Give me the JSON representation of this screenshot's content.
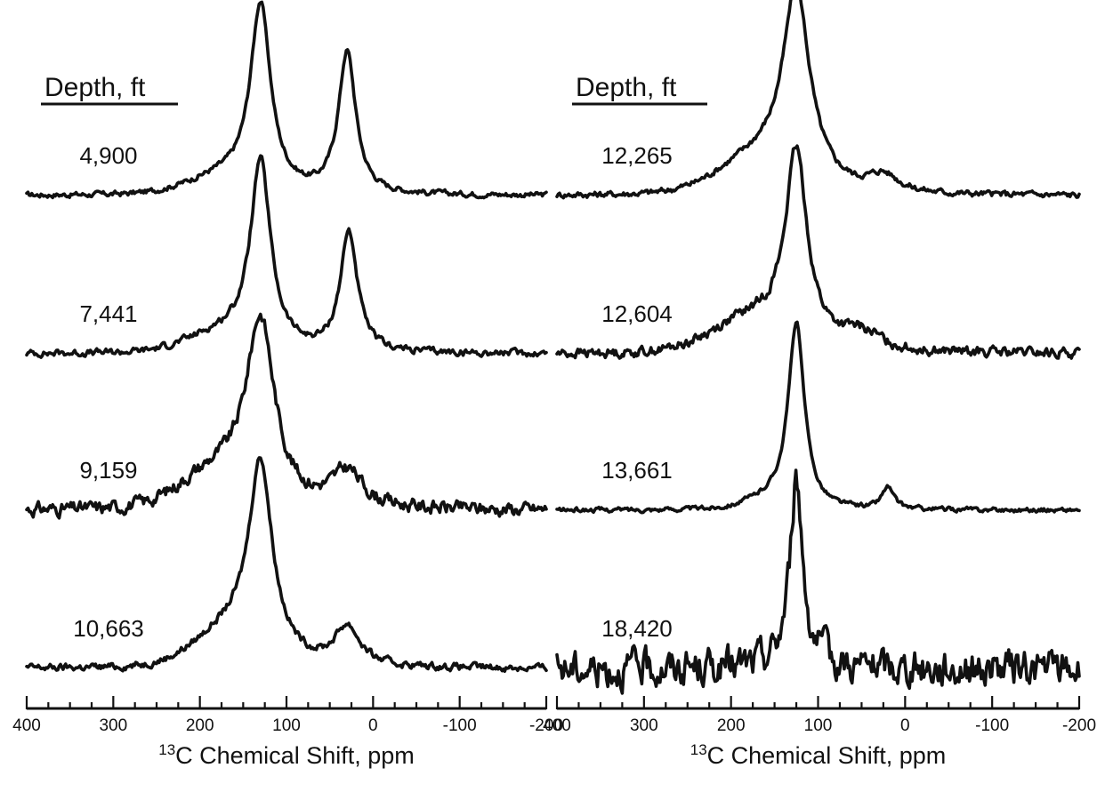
{
  "chart_data": [
    {
      "type": "line",
      "header": "Depth, ft",
      "xlabel_sup": "13",
      "xlabel": "C Chemical Shift, ppm",
      "xlim": [
        400,
        -200
      ],
      "x_ticks": [
        400,
        300,
        200,
        100,
        0,
        -100,
        -200
      ],
      "x_tick_labels": [
        "400",
        "300",
        "200",
        "100",
        "0",
        "-100",
        "-200"
      ],
      "series": [
        {
          "name": "4,900",
          "peaks": [
            {
              "ppm": 130,
              "height": 1.0,
              "width": 14
            },
            {
              "ppm": 30,
              "height": 0.78,
              "width": 12
            }
          ],
          "broad": {
            "ppm": 170,
            "height": 0.09,
            "width": 60
          },
          "noise": 0.012
        },
        {
          "name": "7,441",
          "peaks": [
            {
              "ppm": 130,
              "height": 1.0,
              "width": 14
            },
            {
              "ppm": 28,
              "height": 0.66,
              "width": 12
            }
          ],
          "broad": {
            "ppm": 170,
            "height": 0.1,
            "width": 60
          },
          "noise": 0.015
        },
        {
          "name": "9,159",
          "peaks": [
            {
              "ppm": 130,
              "height": 0.98,
              "width": 20
            },
            {
              "ppm": 30,
              "height": 0.2,
              "width": 22
            }
          ],
          "broad": {
            "ppm": 180,
            "height": 0.18,
            "width": 60
          },
          "noise": 0.03
        },
        {
          "name": "10,663",
          "peaks": [
            {
              "ppm": 130,
              "height": 1.0,
              "width": 16
            },
            {
              "ppm": 30,
              "height": 0.22,
              "width": 18
            }
          ],
          "broad": {
            "ppm": 160,
            "height": 0.2,
            "width": 60
          },
          "noise": 0.016
        }
      ]
    },
    {
      "type": "line",
      "header": "Depth, ft",
      "xlabel_sup": "13",
      "xlabel": "C Chemical Shift, ppm",
      "xlim": [
        400,
        -200
      ],
      "x_ticks": [
        400,
        300,
        200,
        100,
        0,
        -100,
        -200
      ],
      "x_tick_labels": [
        "400",
        "300",
        "200",
        "100",
        "0",
        "-100",
        "-200"
      ],
      "series": [
        {
          "name": "12,265",
          "peaks": [
            {
              "ppm": 125,
              "height": 1.0,
              "width": 18
            },
            {
              "ppm": 25,
              "height": 0.1,
              "width": 22
            }
          ],
          "broad": {
            "ppm": 160,
            "height": 0.2,
            "width": 70
          },
          "noise": 0.014
        },
        {
          "name": "12,604",
          "peaks": [
            {
              "ppm": 125,
              "height": 1.0,
              "width": 15
            },
            {
              "ppm": 50,
              "height": 0.1,
              "width": 30
            }
          ],
          "broad": {
            "ppm": 170,
            "height": 0.18,
            "width": 70
          },
          "noise": 0.022
        },
        {
          "name": "13,661",
          "peaks": [
            {
              "ppm": 125,
              "height": 1.0,
              "width": 11
            },
            {
              "ppm": 20,
              "height": 0.12,
              "width": 8
            }
          ],
          "broad": {
            "ppm": 150,
            "height": 0.05,
            "width": 40
          },
          "noise": 0.01
        },
        {
          "name": "18,420",
          "peaks": [
            {
              "ppm": 125,
              "height": 1.0,
              "width": 9
            }
          ],
          "broad": {
            "ppm": 120,
            "height": 0.03,
            "width": 40
          },
          "noise": 0.08
        }
      ]
    }
  ]
}
